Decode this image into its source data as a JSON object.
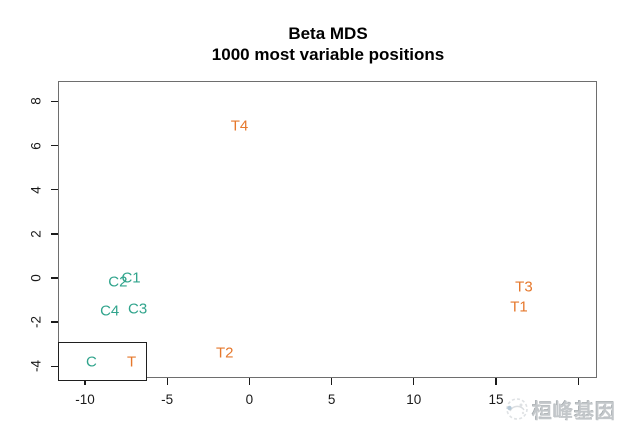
{
  "title": {
    "line1": "Beta MDS",
    "line2": "1000 most variable positions"
  },
  "colors": {
    "control": "#30A48C",
    "treatment": "#E6782C",
    "axis_text": "#1a1a1a",
    "frame": "#6e6e6e",
    "watermark": "#c3c7ca"
  },
  "chart_data": {
    "type": "scatter",
    "title": "Beta MDS",
    "subtitle": "1000 most variable positions",
    "xlabel": "",
    "ylabel": "",
    "xlim": [
      -11.6,
      21.2
    ],
    "ylim": [
      -4.5,
      8.9
    ],
    "x_ticks": [
      -10,
      -5,
      0,
      5,
      10,
      15
    ],
    "x_ticks_unlabeled": [
      20
    ],
    "y_ticks": [
      8,
      6,
      4,
      2,
      0,
      -2,
      -4
    ],
    "grid": false,
    "point_style": "text-labels",
    "legend_position": "bottom-left",
    "series": [
      {
        "name": "C",
        "color": "#30A48C",
        "points": [
          {
            "label": "C1",
            "x": -7.2,
            "y": 0.0
          },
          {
            "label": "C2",
            "x": -8.0,
            "y": -0.2
          },
          {
            "label": "C3",
            "x": -6.8,
            "y": -1.4
          },
          {
            "label": "C4",
            "x": -8.5,
            "y": -1.5
          }
        ]
      },
      {
        "name": "T",
        "color": "#E6782C",
        "points": [
          {
            "label": "T1",
            "x": 16.4,
            "y": -1.3
          },
          {
            "label": "T2",
            "x": -1.5,
            "y": -3.4
          },
          {
            "label": "T3",
            "x": 16.7,
            "y": -0.4
          },
          {
            "label": "T4",
            "x": -0.6,
            "y": 6.9
          }
        ]
      }
    ]
  },
  "legend": {
    "items": [
      {
        "label": "C",
        "color": "#30A48C"
      },
      {
        "label": "T",
        "color": "#E6782C"
      }
    ]
  },
  "watermark": {
    "text": "桓峰基因",
    "logo": "swirl-logo-icon"
  }
}
